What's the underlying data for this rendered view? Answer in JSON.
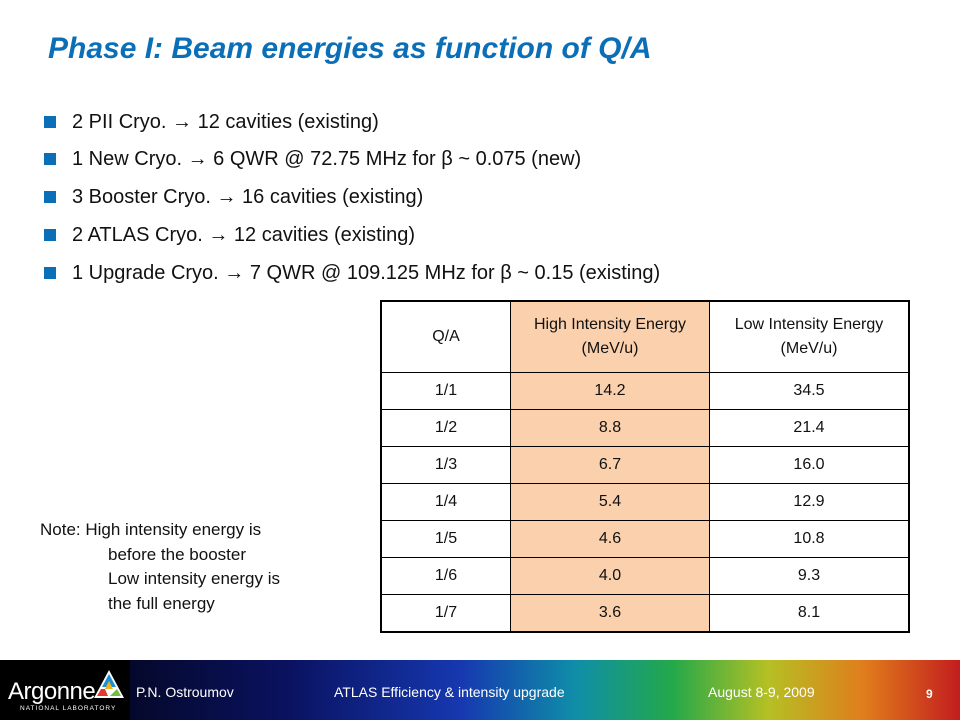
{
  "slide": {
    "title": "Phase I: Beam energies as function of Q/A",
    "bullets": [
      "2 PII Cryo.  → 12 cavities (existing)",
      "1 New Cryo.  → 6 QWR @ 72.75 MHz for β ~ 0.075 (new)",
      "3 Booster Cryo.  → 16 cavities (existing)",
      "2 ATLAS Cryo.  → 12 cavities (existing)",
      "1 Upgrade Cryo.  → 7 QWR @ 109.125 MHz for β ~ 0.15 (existing)"
    ],
    "bullet_color": "#0b6fb8",
    "title_color": "#0b6fb8"
  },
  "table": {
    "headers": [
      "Q/A",
      "High Intensity Energy (MeV/u)",
      "Low Intensity Energy (MeV/u)"
    ],
    "highlight_color": "#fbd0ad",
    "rows": [
      [
        "1/1",
        "14.2",
        "34.5"
      ],
      [
        "1/2",
        "8.8",
        "21.4"
      ],
      [
        "1/3",
        "6.7",
        "16.0"
      ],
      [
        "1/4",
        "5.4",
        "12.9"
      ],
      [
        "1/5",
        "4.6",
        "10.8"
      ],
      [
        "1/6",
        "4.0",
        "9.3"
      ],
      [
        "1/7",
        "3.6",
        "8.1"
      ]
    ]
  },
  "note": {
    "line1": "Note: High intensity energy is",
    "line2": "before the booster",
    "line3": "Low intensity energy is",
    "line4": "the full energy"
  },
  "footer": {
    "logo_text": "Argonne",
    "logo_sub": "NATIONAL LABORATORY",
    "author": "P.N. Ostroumov",
    "event": "ATLAS Efficiency & intensity upgrade",
    "date": "August 8-9, 2009",
    "page": "9"
  }
}
